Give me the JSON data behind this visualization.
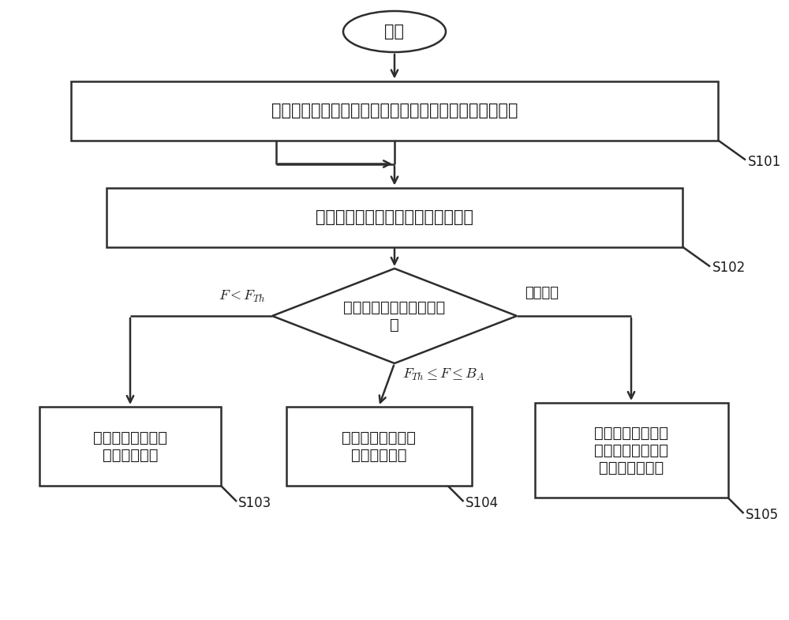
{
  "bg_color": "#ffffff",
  "line_color": "#2d2d2d",
  "text_color": "#1a1a1a",
  "start_text": "开始",
  "box1_text": "基于当前接入用户数量和总带宽确定各用户平均分配带宽",
  "box2_text": "获取该用户在监测周期内的实时流量",
  "diamond_text": "如果在连续多个监测周期\n内",
  "left_label": "$F < F_{Th}$",
  "mid_label": "$F_{Th} \\leq F \\leq B_A$",
  "right_label": "其他情况",
  "box3_text": "根据第一调整粒度\n减小当前带宽",
  "box4_text": "根据第二调整粒度\n增加当前带宽",
  "box5_text": "不调整当前带宽，\n并重新开始该用户\n的测量周期计数",
  "s101": "S101",
  "s102": "S102",
  "s103": "S103",
  "s104": "S104",
  "s105": "S105",
  "font_size_main": 15,
  "font_size_box3": 14,
  "font_size_label": 13,
  "font_size_step": 12
}
